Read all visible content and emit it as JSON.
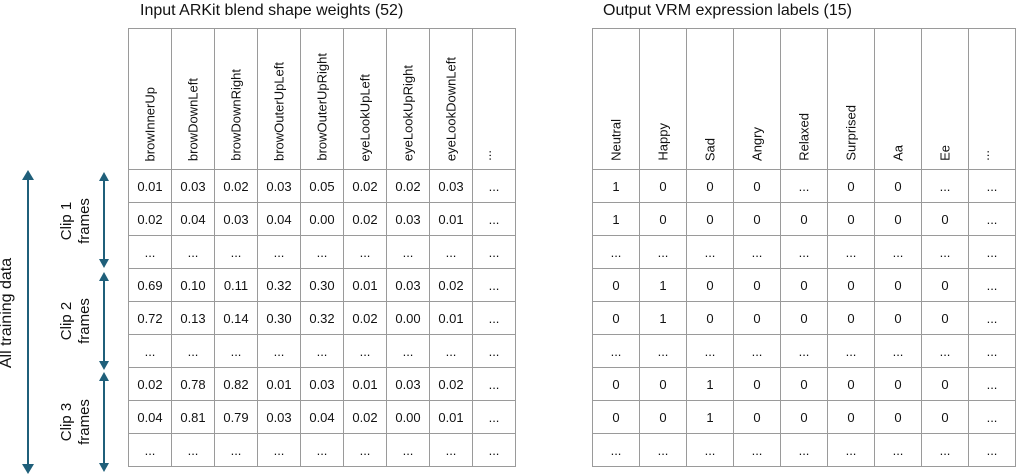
{
  "titles": {
    "input": "Input ARKit blend shape weights (52)",
    "output": "Output VRM expression labels (15)"
  },
  "side": {
    "all": "All training data",
    "clips": [
      {
        "line1": "Clip 1",
        "line2": "frames"
      },
      {
        "line1": "Clip 2",
        "line2": "frames"
      },
      {
        "line1": "Clip 3",
        "line2": "frames"
      }
    ]
  },
  "input_table": {
    "headers": [
      "browInnerUp",
      "browDownLeft",
      "browDownRight",
      "browOuterUpLeft",
      "browOuterUpRight",
      "eyeLookUpLeft",
      "eyeLookUpRight",
      "eyeLookDownLeft",
      "..."
    ],
    "rows": [
      [
        "0.01",
        "0.03",
        "0.02",
        "0.03",
        "0.05",
        "0.02",
        "0.02",
        "0.03",
        "..."
      ],
      [
        "0.02",
        "0.04",
        "0.03",
        "0.04",
        "0.00",
        "0.02",
        "0.03",
        "0.01",
        "..."
      ],
      [
        "...",
        "...",
        "...",
        "...",
        "...",
        "...",
        "...",
        "...",
        "..."
      ],
      [
        "0.69",
        "0.10",
        "0.11",
        "0.32",
        "0.30",
        "0.01",
        "0.03",
        "0.02",
        "..."
      ],
      [
        "0.72",
        "0.13",
        "0.14",
        "0.30",
        "0.32",
        "0.02",
        "0.00",
        "0.01",
        "..."
      ],
      [
        "...",
        "...",
        "...",
        "...",
        "...",
        "...",
        "...",
        "...",
        "..."
      ],
      [
        "0.02",
        "0.78",
        "0.82",
        "0.01",
        "0.03",
        "0.01",
        "0.03",
        "0.02",
        "..."
      ],
      [
        "0.04",
        "0.81",
        "0.79",
        "0.03",
        "0.04",
        "0.02",
        "0.00",
        "0.01",
        "..."
      ],
      [
        "...",
        "...",
        "...",
        "...",
        "...",
        "...",
        "...",
        "...",
        "..."
      ]
    ]
  },
  "output_table": {
    "headers": [
      "Neutral",
      "Happy",
      "Sad",
      "Angry",
      "Relaxed",
      "Surprised",
      "Aa",
      "Ee",
      "..."
    ],
    "rows": [
      [
        "1",
        "0",
        "0",
        "0",
        "...",
        "0",
        "0",
        "...",
        "..."
      ],
      [
        "1",
        "0",
        "0",
        "0",
        "0",
        "0",
        "0",
        "0",
        "..."
      ],
      [
        "...",
        "...",
        "...",
        "...",
        "...",
        "...",
        "...",
        "...",
        "..."
      ],
      [
        "0",
        "1",
        "0",
        "0",
        "0",
        "0",
        "0",
        "0",
        "..."
      ],
      [
        "0",
        "1",
        "0",
        "0",
        "0",
        "0",
        "0",
        "0",
        "..."
      ],
      [
        "...",
        "...",
        "...",
        "...",
        "...",
        "...",
        "...",
        "...",
        "..."
      ],
      [
        "0",
        "0",
        "1",
        "0",
        "0",
        "0",
        "0",
        "0",
        "..."
      ],
      [
        "0",
        "0",
        "1",
        "0",
        "0",
        "0",
        "0",
        "0",
        "..."
      ],
      [
        "...",
        "...",
        "...",
        "...",
        "...",
        "...",
        "...",
        "...",
        "..."
      ]
    ]
  },
  "colors": {
    "arrow": "#1f5f7a",
    "grid": "#9a9a9a"
  }
}
